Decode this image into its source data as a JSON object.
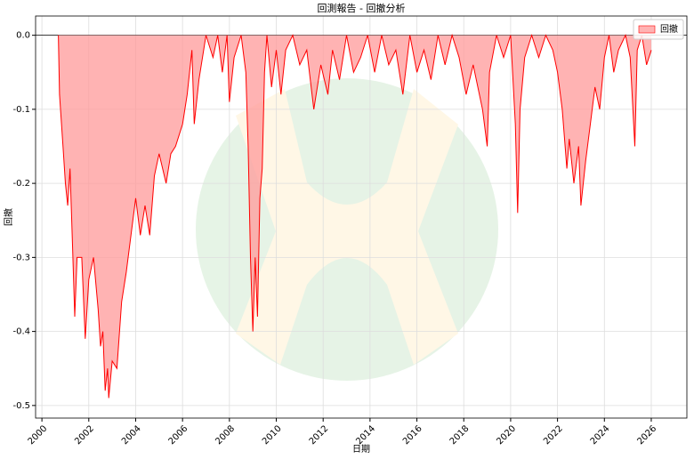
{
  "chart_data": {
    "type": "area",
    "title": "回測報告 - 回撤分析",
    "xlabel": "日期",
    "ylabel": "回撤",
    "grid": true,
    "legend": "upper right",
    "xlim": [
      1999.73,
      2027.52
    ],
    "xticks": [
      2000,
      2002,
      2004,
      2006,
      2008,
      2010,
      2012,
      2014,
      2016,
      2018,
      2020,
      2022,
      2024,
      2026
    ],
    "ylim": [
      -0.517,
      0.026
    ],
    "yticks": [
      {
        "value": 0,
        "label": "0.0"
      },
      -0.1,
      -0.2,
      -0.3,
      -0.4,
      -0.5
    ],
    "series": [
      {
        "name": "回撤",
        "color": "#ff0000",
        "fill": "#ff9999",
        "x": [
          2000.7,
          2000.75,
          2000.9,
          2001.0,
          2001.1,
          2001.2,
          2001.3,
          2001.4,
          2001.5,
          2001.7,
          2001.85,
          2002.0,
          2002.2,
          2002.4,
          2002.5,
          2002.6,
          2002.7,
          2002.8,
          2002.85,
          2003.0,
          2003.2,
          2003.4,
          2003.6,
          2003.8,
          2004.0,
          2004.2,
          2004.4,
          2004.6,
          2004.8,
          2005.0,
          2005.3,
          2005.5,
          2005.7,
          2006.0,
          2006.2,
          2006.4,
          2006.5,
          2006.7,
          2006.9,
          2007.0,
          2007.3,
          2007.5,
          2007.7,
          2007.9,
          2008.0,
          2008.2,
          2008.5,
          2008.7,
          2008.8,
          2008.9,
          2009.0,
          2009.1,
          2009.2,
          2009.3,
          2009.4,
          2009.5,
          2009.6,
          2009.8,
          2010.0,
          2010.2,
          2010.4,
          2010.7,
          2011.0,
          2011.3,
          2011.6,
          2011.9,
          2012.2,
          2012.4,
          2012.7,
          2013.0,
          2013.3,
          2013.6,
          2013.9,
          2014.2,
          2014.5,
          2014.8,
          2015.1,
          2015.4,
          2015.7,
          2016.0,
          2016.3,
          2016.6,
          2016.9,
          2017.2,
          2017.5,
          2017.8,
          2018.1,
          2018.4,
          2018.8,
          2019.0,
          2019.1,
          2019.4,
          2019.7,
          2020.0,
          2020.2,
          2020.3,
          2020.4,
          2020.6,
          2020.9,
          2021.2,
          2021.5,
          2021.8,
          2022.0,
          2022.2,
          2022.4,
          2022.5,
          2022.7,
          2022.9,
          2023.0,
          2023.2,
          2023.4,
          2023.6,
          2023.8,
          2024.0,
          2024.2,
          2024.4,
          2024.6,
          2024.9,
          2025.1,
          2025.3,
          2025.4,
          2025.6,
          2025.8,
          2026.0
        ],
        "values": [
          0,
          -0.08,
          -0.15,
          -0.2,
          -0.23,
          -0.18,
          -0.28,
          -0.38,
          -0.3,
          -0.3,
          -0.41,
          -0.33,
          -0.3,
          -0.37,
          -0.42,
          -0.4,
          -0.48,
          -0.45,
          -0.49,
          -0.44,
          -0.45,
          -0.36,
          -0.32,
          -0.27,
          -0.22,
          -0.27,
          -0.23,
          -0.27,
          -0.19,
          -0.16,
          -0.2,
          -0.16,
          -0.15,
          -0.12,
          -0.08,
          -0.02,
          -0.12,
          -0.06,
          -0.02,
          0,
          -0.03,
          0,
          -0.05,
          0,
          -0.09,
          -0.03,
          0,
          -0.05,
          -0.15,
          -0.3,
          -0.4,
          -0.3,
          -0.38,
          -0.22,
          -0.18,
          -0.05,
          0,
          -0.07,
          -0.02,
          -0.08,
          -0.02,
          0,
          -0.04,
          -0.02,
          -0.1,
          -0.04,
          -0.08,
          -0.02,
          -0.06,
          0,
          -0.05,
          -0.03,
          0,
          -0.05,
          0,
          -0.04,
          -0.02,
          -0.08,
          0,
          -0.05,
          -0.02,
          -0.06,
          0,
          -0.04,
          0,
          -0.03,
          -0.08,
          -0.04,
          -0.1,
          -0.15,
          -0.05,
          0,
          -0.03,
          0,
          -0.12,
          -0.24,
          -0.1,
          -0.03,
          0,
          -0.03,
          0,
          -0.02,
          -0.05,
          -0.1,
          -0.18,
          -0.14,
          -0.2,
          -0.15,
          -0.23,
          -0.17,
          -0.12,
          -0.07,
          -0.1,
          -0.03,
          0,
          -0.05,
          -0.02,
          0,
          -0.03,
          -0.15,
          -0.02,
          0,
          -0.04,
          -0.02
        ]
      }
    ]
  }
}
